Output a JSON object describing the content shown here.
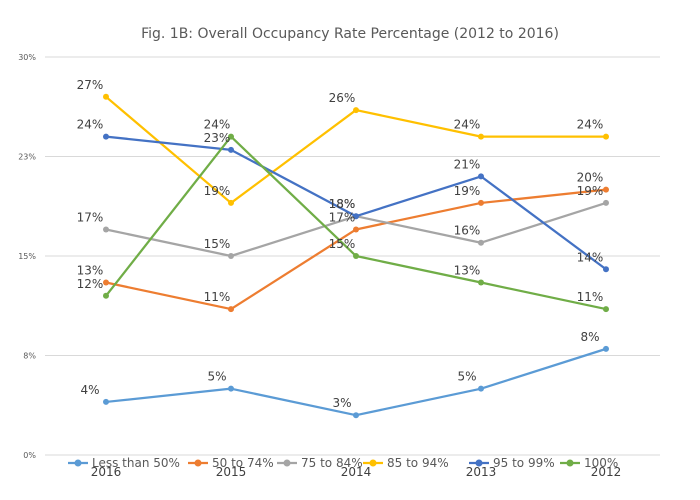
{
  "chart_data": {
    "type": "line",
    "title": "Fig. 1B: Overall Occupancy Rate Percentage (2012 to 2016)",
    "xlabel": "",
    "ylabel": "",
    "categories": [
      "2016",
      "2015",
      "2014",
      "2013",
      "2012"
    ],
    "ylim": [
      0,
      30
    ],
    "yticks": [
      0,
      7.5,
      15,
      22.5,
      30
    ],
    "ytick_labels": [
      "0%",
      "8%",
      "15%",
      "23%",
      "30%"
    ],
    "grid": true,
    "legend_position": "bottom",
    "series": [
      {
        "name": "Less than 50%",
        "color": "#5b9bd5",
        "values": [
          4,
          5,
          3,
          5,
          8
        ],
        "labels": [
          "4%",
          "5%",
          "3%",
          "5%",
          "8%"
        ]
      },
      {
        "name": "50 to 74%",
        "color": "#ed7d31",
        "values": [
          13,
          11,
          17,
          19,
          20
        ],
        "labels": [
          "13%",
          "11%",
          "17%",
          "19%",
          "20%"
        ]
      },
      {
        "name": "75 to 84%",
        "color": "#a5a5a5",
        "values": [
          17,
          15,
          18,
          16,
          19
        ],
        "labels": [
          "17%",
          "15%",
          "18%",
          "16%",
          "19%"
        ]
      },
      {
        "name": "85 to 94%",
        "color": "#ffc000",
        "values": [
          27,
          19,
          26,
          24,
          24
        ],
        "labels": [
          "27%",
          "19%",
          "26%",
          "24%",
          "24%"
        ]
      },
      {
        "name": "95 to 99%",
        "color": "#4472c4",
        "values": [
          24,
          23,
          18,
          21,
          14
        ],
        "labels": [
          "24%",
          "23%",
          "18%",
          "21%",
          "14%"
        ]
      },
      {
        "name": "100%",
        "color": "#70ad47",
        "values": [
          12,
          24,
          15,
          13,
          11
        ],
        "labels": [
          "12%",
          "24%",
          "15%",
          "13%",
          "11%"
        ]
      }
    ]
  }
}
